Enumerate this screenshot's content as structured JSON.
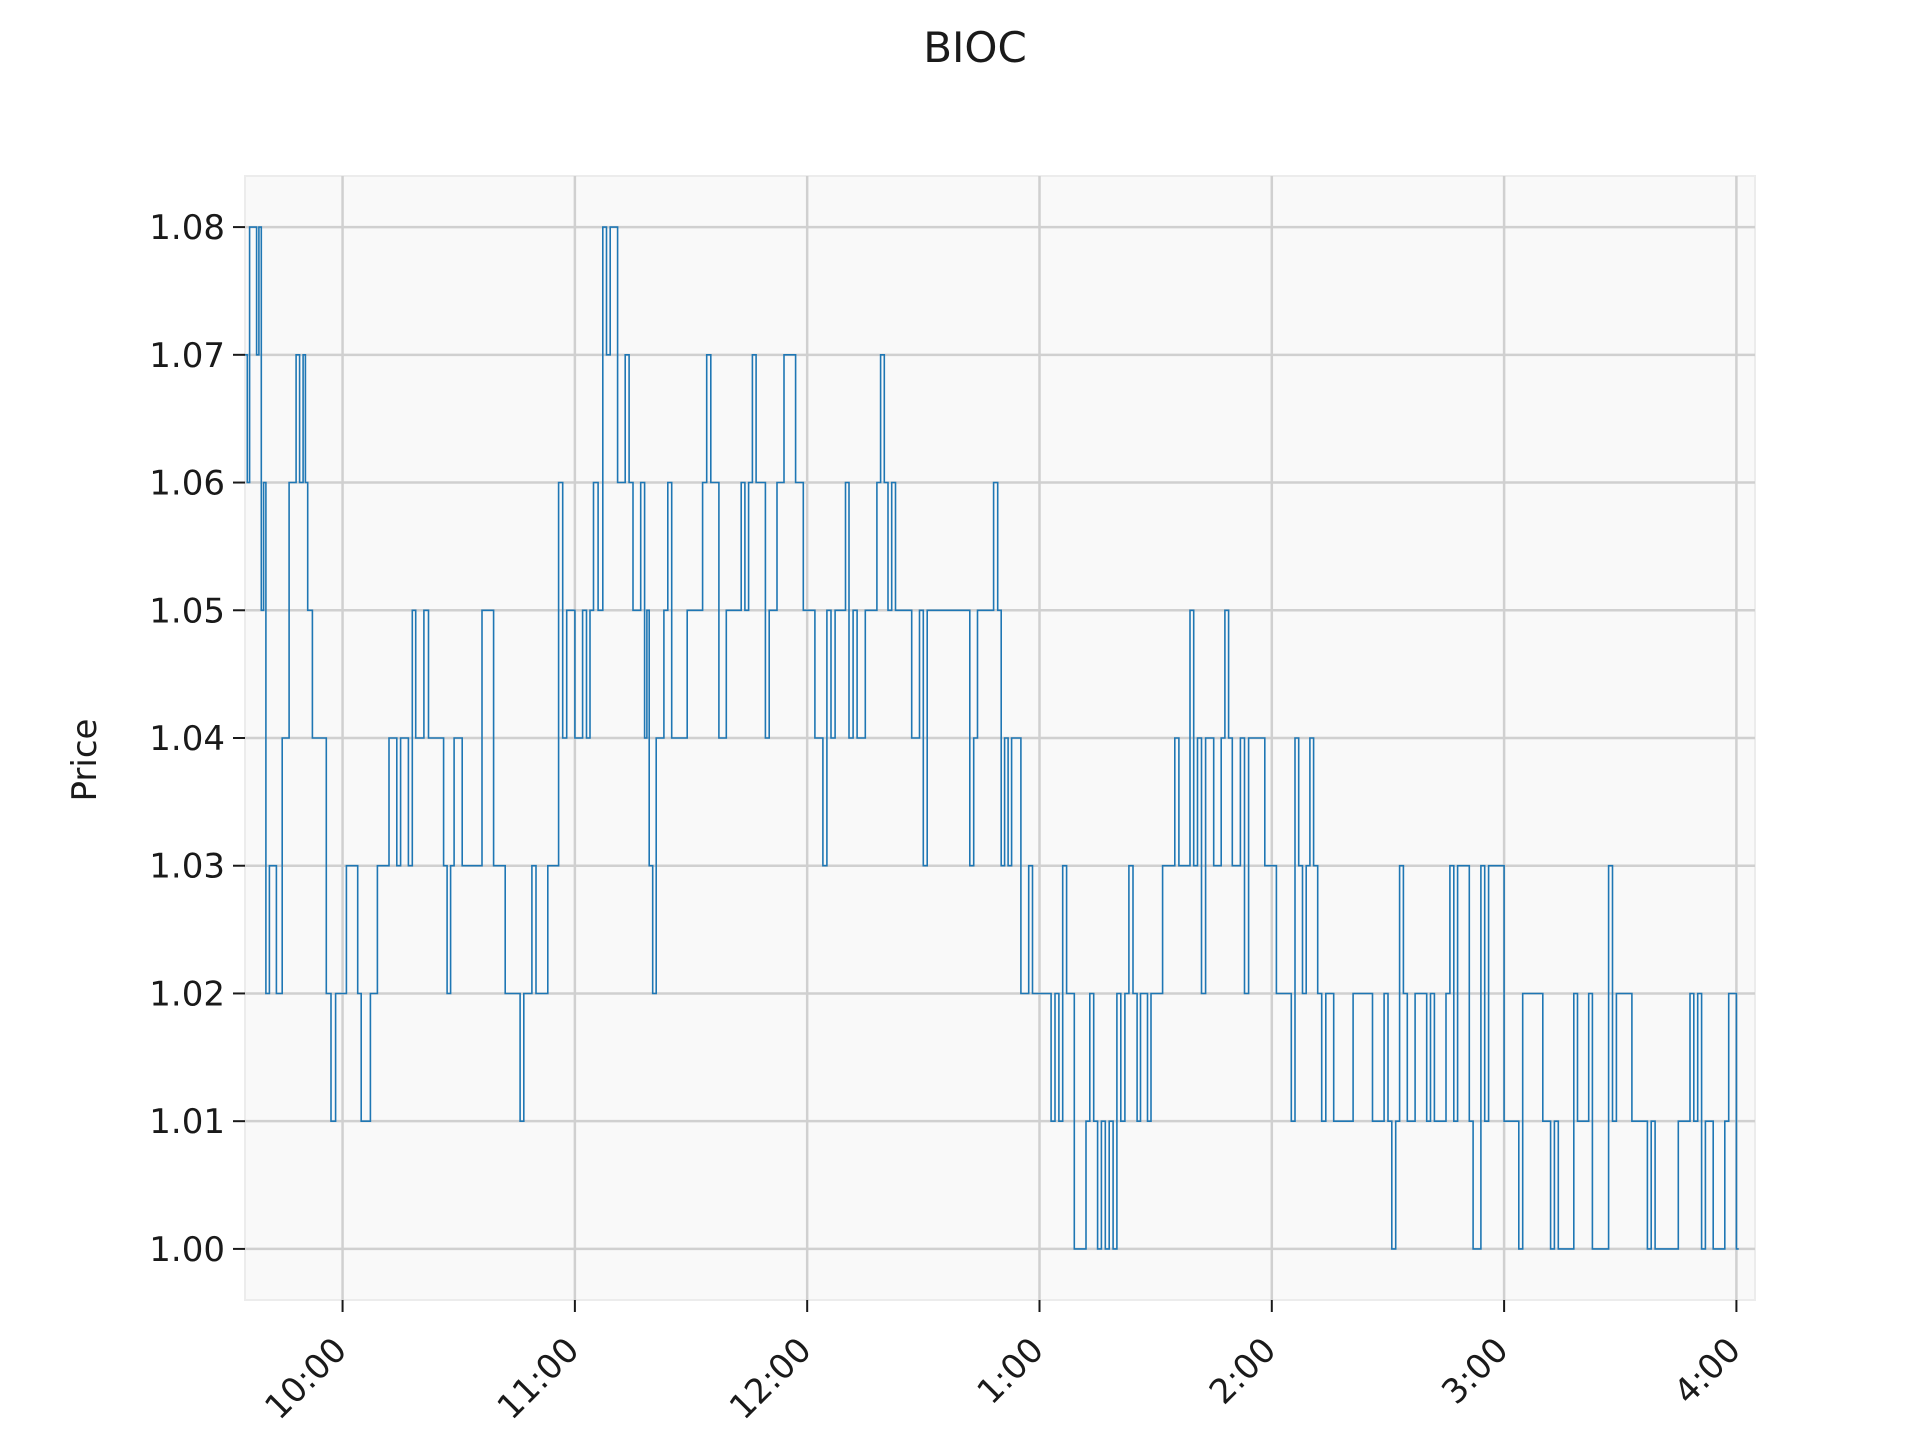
{
  "chart_data": {
    "type": "line",
    "title": "BIOC",
    "xlabel": "",
    "ylabel": "Price",
    "x_ticks": [
      "10:00",
      "11:00",
      "12:00",
      "1:00",
      "2:00",
      "3:00",
      "4:00"
    ],
    "x_tick_values": [
      10,
      11,
      12,
      13,
      14,
      15,
      16
    ],
    "xlim": [
      9.58,
      16.08
    ],
    "y_ticks": [
      "1.00",
      "1.01",
      "1.02",
      "1.03",
      "1.04",
      "1.05",
      "1.06",
      "1.07",
      "1.08"
    ],
    "y_tick_values": [
      1.0,
      1.01,
      1.02,
      1.03,
      1.04,
      1.05,
      1.06,
      1.07,
      1.08
    ],
    "ylim": [
      0.996,
      1.084
    ],
    "grid": true,
    "colors": {
      "line": "#1f77b4",
      "plot_background": "#f9f9f9",
      "grid": "#d0d0d0"
    },
    "series": [
      {
        "price_levels": [
          [
            9.58,
            1.07
          ],
          [
            9.6,
            1.08
          ],
          [
            9.63,
            1.07
          ],
          [
            9.65,
            1.05
          ],
          [
            9.67,
            1.03
          ],
          [
            9.7,
            1.02
          ],
          [
            9.73,
            1.03
          ],
          [
            9.75,
            1.04
          ],
          [
            9.77,
            1.05
          ],
          [
            9.8,
            1.06
          ],
          [
            9.83,
            1.07
          ],
          [
            9.85,
            1.05
          ],
          [
            9.87,
            1.04
          ],
          [
            9.9,
            1.03
          ],
          [
            9.93,
            1.02
          ],
          [
            9.95,
            1.01
          ],
          [
            9.97,
            1.02
          ],
          [
            10.0,
            1.03
          ],
          [
            10.05,
            1.02
          ],
          [
            10.08,
            1.01
          ],
          [
            10.12,
            1.02
          ],
          [
            10.15,
            1.03
          ],
          [
            10.2,
            1.04
          ],
          [
            10.25,
            1.03
          ],
          [
            10.3,
            1.04
          ],
          [
            10.33,
            1.05
          ],
          [
            10.37,
            1.04
          ],
          [
            10.42,
            1.03
          ],
          [
            10.48,
            1.04
          ],
          [
            10.55,
            1.03
          ],
          [
            10.6,
            1.04
          ],
          [
            10.65,
            1.03
          ],
          [
            10.7,
            1.02
          ],
          [
            10.78,
            1.03
          ],
          [
            10.85,
            1.02
          ],
          [
            10.9,
            1.04
          ],
          [
            10.93,
            1.05
          ],
          [
            11.0,
            1.04
          ],
          [
            11.05,
            1.05
          ],
          [
            11.08,
            1.06
          ],
          [
            11.12,
            1.07
          ],
          [
            11.2,
            1.06
          ],
          [
            11.25,
            1.05
          ],
          [
            11.3,
            1.04
          ],
          [
            11.32,
            1.03
          ],
          [
            11.35,
            1.04
          ],
          [
            11.4,
            1.05
          ],
          [
            11.45,
            1.04
          ],
          [
            11.5,
            1.05
          ],
          [
            11.55,
            1.06
          ],
          [
            11.62,
            1.05
          ],
          [
            11.7,
            1.06
          ],
          [
            11.78,
            1.05
          ],
          [
            11.82,
            1.04
          ],
          [
            11.87,
            1.06
          ],
          [
            11.9,
            1.07
          ],
          [
            11.95,
            1.06
          ],
          [
            12.0,
            1.05
          ],
          [
            12.05,
            1.04
          ],
          [
            12.12,
            1.05
          ],
          [
            12.18,
            1.04
          ],
          [
            12.25,
            1.05
          ],
          [
            12.3,
            1.06
          ],
          [
            12.38,
            1.05
          ],
          [
            12.45,
            1.04
          ],
          [
            12.55,
            1.05
          ],
          [
            12.65,
            1.04
          ],
          [
            12.75,
            1.05
          ],
          [
            12.82,
            1.04
          ],
          [
            12.88,
            1.03
          ],
          [
            12.92,
            1.02
          ],
          [
            12.97,
            1.03
          ],
          [
            13.0,
            1.02
          ],
          [
            13.05,
            1.01
          ],
          [
            13.1,
            1.02
          ],
          [
            13.15,
            1.0
          ],
          [
            13.2,
            1.01
          ],
          [
            13.25,
            1.0
          ],
          [
            13.3,
            1.01
          ],
          [
            13.35,
            1.02
          ],
          [
            13.42,
            1.01
          ],
          [
            13.48,
            1.02
          ],
          [
            13.53,
            1.03
          ],
          [
            13.6,
            1.04
          ],
          [
            13.68,
            1.03
          ],
          [
            13.75,
            1.04
          ],
          [
            13.83,
            1.03
          ],
          [
            13.9,
            1.04
          ],
          [
            13.97,
            1.03
          ],
          [
            14.02,
            1.02
          ],
          [
            14.1,
            1.03
          ],
          [
            14.18,
            1.02
          ],
          [
            14.25,
            1.01
          ],
          [
            14.35,
            1.02
          ],
          [
            14.45,
            1.01
          ],
          [
            14.55,
            1.02
          ],
          [
            14.65,
            1.01
          ],
          [
            14.75,
            1.02
          ],
          [
            14.85,
            1.01
          ],
          [
            14.9,
            1.02
          ],
          [
            14.95,
            1.03
          ],
          [
            15.0,
            1.01
          ],
          [
            15.03,
            1.0
          ],
          [
            15.08,
            1.02
          ],
          [
            15.15,
            1.01
          ],
          [
            15.2,
            1.0
          ],
          [
            15.3,
            1.01
          ],
          [
            15.38,
            1.0
          ],
          [
            15.45,
            1.02
          ],
          [
            15.55,
            1.01
          ],
          [
            15.65,
            1.0
          ],
          [
            15.75,
            1.01
          ],
          [
            15.85,
            1.0
          ],
          [
            15.95,
            1.01
          ],
          [
            16.0,
            1.0
          ]
        ]
      }
    ]
  }
}
